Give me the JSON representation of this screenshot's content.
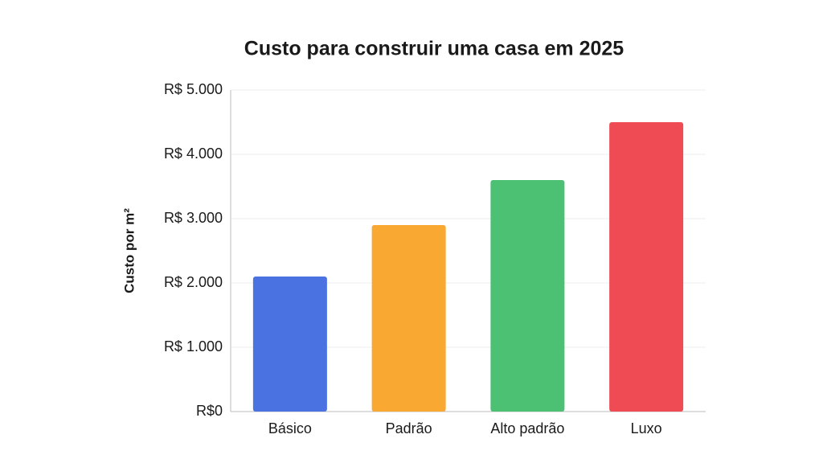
{
  "chart_data": {
    "type": "bar",
    "title": "Custo para construir uma casa em 2025",
    "y_label": "Custo por m²",
    "categories": [
      "Básico",
      "Padrão",
      "Alto padrão",
      "Luxo"
    ],
    "values": [
      2100,
      2900,
      3600,
      4500
    ],
    "colors": [
      "#4a72e0",
      "#f9a832",
      "#4cc174",
      "#ef4b55"
    ],
    "ylim": [
      0,
      5000
    ],
    "yticks": [
      {
        "value": 0,
        "label": "R$0"
      },
      {
        "value": 1000,
        "label": "R$ 1.000"
      },
      {
        "value": 2000,
        "label": "R$ 2.000"
      },
      {
        "value": 3000,
        "label": "R$ 3.000"
      },
      {
        "value": 4000,
        "label": "R$ 4.000"
      },
      {
        "value": 5000,
        "label": "R$ 5.000"
      }
    ],
    "grid": true
  }
}
